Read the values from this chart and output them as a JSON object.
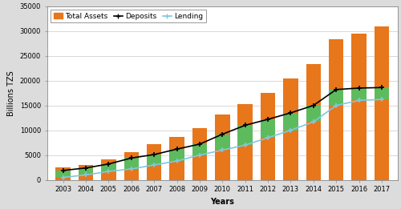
{
  "years": [
    2003,
    2004,
    2005,
    2006,
    2007,
    2008,
    2009,
    2010,
    2011,
    2012,
    2013,
    2014,
    2015,
    2016,
    2017
  ],
  "total_assets": [
    2600,
    3000,
    4200,
    5600,
    7200,
    8700,
    10500,
    13100,
    15200,
    17600,
    20400,
    23400,
    28400,
    29500,
    30900
  ],
  "deposits": [
    1900,
    2400,
    3200,
    4400,
    5100,
    6200,
    7200,
    9200,
    11000,
    12200,
    13500,
    15000,
    18200,
    18500,
    18600
  ],
  "lending": [
    500,
    1000,
    1700,
    2200,
    3000,
    3800,
    5000,
    6000,
    7000,
    8500,
    10000,
    11700,
    15000,
    16000,
    16200
  ],
  "bar_color": "#E8761A",
  "deposit_color": "#000000",
  "lending_color": "#7EC8E3",
  "green_fill_color": "#5DBB5D",
  "ylim": [
    0,
    35000
  ],
  "yticks": [
    0,
    5000,
    10000,
    15000,
    20000,
    25000,
    30000,
    35000
  ],
  "ylabel": "Billions TZS",
  "xlabel": "Years",
  "legend_labels": [
    "Total Assets",
    "Deposits",
    "Lending"
  ],
  "bg_color": "#DCDCDC",
  "axes_bg": "#FFFFFF",
  "tick_fontsize": 6,
  "label_fontsize": 7,
  "legend_fontsize": 6.5
}
